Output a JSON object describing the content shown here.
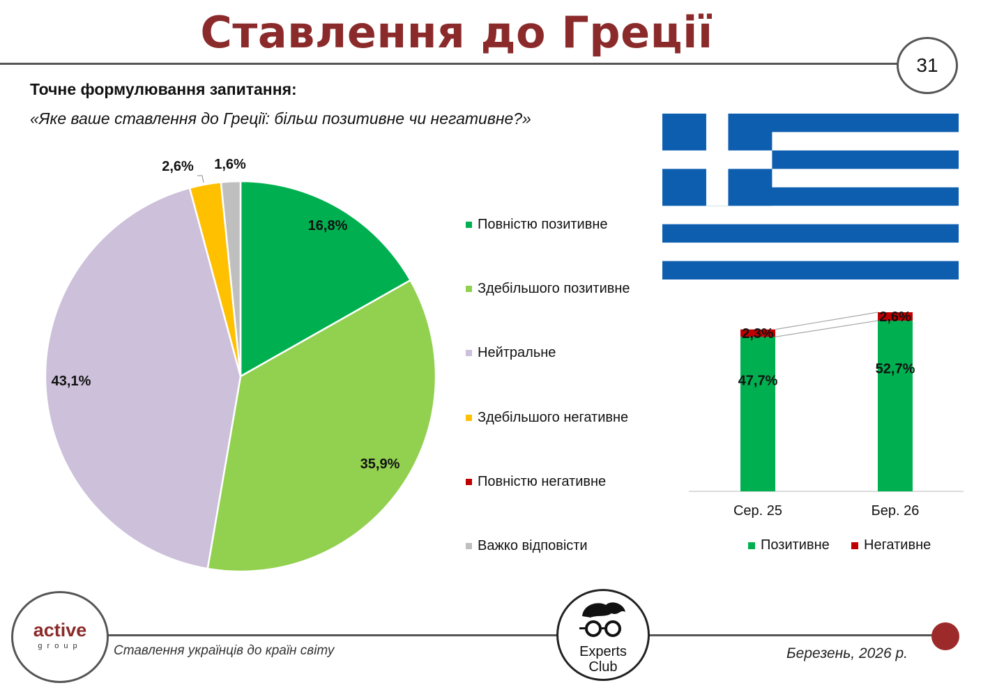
{
  "page": {
    "title": "Ставлення до Греції",
    "page_number": "31",
    "question_heading": "Точне формулювання запитання:",
    "question_text": "«Яке ваше ставлення до Греції: більш позитивне чи негативне?»"
  },
  "footer": {
    "caption": "Ставлення українців до країн світу",
    "date": "Березень, 2026 р.",
    "logo_left_word1": "active",
    "logo_left_word2": "group",
    "logo_center_line1": "Experts",
    "logo_center_line2": "Club"
  },
  "colors": {
    "title": "#8b2a2a",
    "fully_positive": "#00b050",
    "mostly_positive": "#92d050",
    "neutral": "#ccc0da",
    "mostly_negative": "#ffc000",
    "fully_negative": "#c00000",
    "hard_to_say": "#bfbfbf",
    "flag_blue": "#0d5eaf"
  },
  "chart_data": [
    {
      "type": "pie",
      "title": "",
      "slices": [
        {
          "label": "Повністю позитивне",
          "value": 16.8,
          "display": "16,8%",
          "color": "#00b050"
        },
        {
          "label": "Здебільшого позитивне",
          "value": 35.9,
          "display": "35,9%",
          "color": "#92d050"
        },
        {
          "label": "Нейтральне",
          "value": 43.1,
          "display": "43,1%",
          "color": "#ccc0da"
        },
        {
          "label": "Здебільшого негативне",
          "value": 2.6,
          "display": "2,6%",
          "color": "#ffc000"
        },
        {
          "label": "Повністю негативне",
          "value": 0,
          "display": "",
          "color": "#c00000"
        },
        {
          "label": "Важко відповісти",
          "value": 1.6,
          "display": "1,6%",
          "color": "#bfbfbf"
        }
      ],
      "legend_position": "right"
    },
    {
      "type": "bar",
      "stacked": true,
      "categories": [
        "Сер. 25",
        "Бер. 26"
      ],
      "series": [
        {
          "name": "Позитивне",
          "values": [
            47.7,
            52.7
          ],
          "display": [
            "47,7%",
            "52,7%"
          ],
          "color": "#00b050"
        },
        {
          "name": "Негативне",
          "values": [
            2.3,
            2.6
          ],
          "display": [
            "2,3%",
            "2,6%"
          ],
          "color": "#c00000"
        }
      ],
      "legend_position": "bottom",
      "grid": false
    }
  ]
}
